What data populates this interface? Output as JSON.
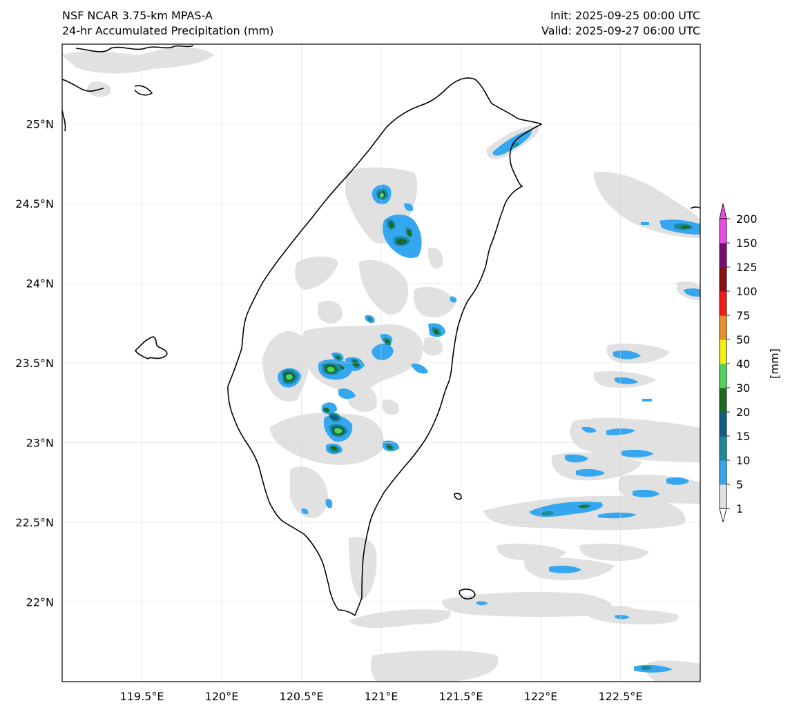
{
  "header": {
    "model": "NSF NCAR 3.75-km MPAS-A",
    "field": "24-hr Accumulated Precipitation (mm)",
    "init": "Init: 2025-09-25 00:00 UTC",
    "valid": "Valid: 2025-09-27 06:00 UTC"
  },
  "map": {
    "lon_range": [
      119.0,
      123.0
    ],
    "lat_range": [
      21.5,
      25.5
    ],
    "lon_ticks": [
      "119.5°E",
      "120°E",
      "120.5°E",
      "121°E",
      "121.5°E",
      "122°E",
      "122.5°E"
    ],
    "lat_ticks": [
      "25°N",
      "24.5°N",
      "24°N",
      "23.5°N",
      "23°N",
      "22.5°N",
      "22°N"
    ],
    "gridlines": true,
    "land_color": "#ffffff",
    "coastline_color": "#000000"
  },
  "colorbar": {
    "unit_label": "[mm]",
    "levels": [
      "1",
      "5",
      "10",
      "15",
      "20",
      "30",
      "40",
      "50",
      "75",
      "100",
      "125",
      "150",
      "200"
    ],
    "colors": [
      "#e1e1e1",
      "#35a7f1",
      "#1b8a99",
      "#0e5d82",
      "#1a6d1f",
      "#4fd35a",
      "#f4ef11",
      "#ea8e28",
      "#f01c12",
      "#8e0f0f",
      "#790e79",
      "#e84de8"
    ],
    "extend": "both"
  },
  "precip_cells": [
    {
      "lon": 121.0,
      "lat": 24.55,
      "level": 5
    },
    {
      "lon": 121.05,
      "lat": 24.35,
      "level": 4
    },
    {
      "lon": 121.1,
      "lat": 24.25,
      "level": 4
    },
    {
      "lon": 121.15,
      "lat": 24.3,
      "level": 3
    },
    {
      "lon": 121.33,
      "lat": 23.7,
      "level": 3
    },
    {
      "lon": 120.42,
      "lat": 23.4,
      "level": 5
    },
    {
      "lon": 120.68,
      "lat": 23.45,
      "level": 5
    },
    {
      "lon": 120.75,
      "lat": 23.5,
      "level": 4
    },
    {
      "lon": 120.85,
      "lat": 23.48,
      "level": 4
    },
    {
      "lon": 120.65,
      "lat": 23.2,
      "level": 3
    },
    {
      "lon": 120.73,
      "lat": 23.05,
      "level": 5
    },
    {
      "lon": 120.69,
      "lat": 22.95,
      "level": 3
    },
    {
      "lon": 121.03,
      "lat": 23.62,
      "level": 3
    },
    {
      "lon": 121.03,
      "lat": 22.97,
      "level": 3
    },
    {
      "lon": 120.95,
      "lat": 23.77,
      "level": 2
    },
    {
      "lon": 121.77,
      "lat": 24.83,
      "level": 2
    },
    {
      "lon": 122.8,
      "lat": 24.35,
      "level": 3
    },
    {
      "lon": 122.0,
      "lat": 22.55,
      "level": 3
    },
    {
      "lon": 122.28,
      "lat": 22.59,
      "level": 3
    },
    {
      "lon": 122.55,
      "lat": 22.92,
      "level": 2
    },
    {
      "lon": 121.9,
      "lat": 22.9,
      "level": 2
    },
    {
      "lon": 122.6,
      "lat": 22.68,
      "level": 2
    },
    {
      "lon": 122.62,
      "lat": 21.58,
      "level": 2
    },
    {
      "lon": 122.5,
      "lat": 23.38,
      "level": 2
    }
  ]
}
